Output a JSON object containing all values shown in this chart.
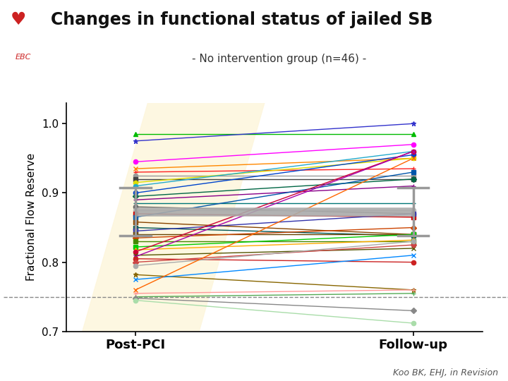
{
  "title": "Changes in functional status of jailed SB",
  "subtitle": "- No intervention group (n=46) -",
  "ylabel": "Fractional Flow Reserve",
  "xlabel_left": "Post-PCI",
  "xlabel_right": "Follow-up",
  "citation": "Koo BK, EHJ, in Revision",
  "ylim": [
    0.7,
    1.03
  ],
  "yticks": [
    0.7,
    0.8,
    0.9,
    1.0
  ],
  "dashed_line_y": 0.75,
  "mean_postpci": 0.873,
  "mean_followup": 0.873,
  "mean_err_low": 0.035,
  "mean_err_high": 0.035,
  "lines": [
    {
      "post": 0.985,
      "fu": 0.985,
      "color": "#00bb00",
      "marker": "^"
    },
    {
      "post": 0.975,
      "fu": 1.0,
      "color": "#3333cc",
      "marker": "*"
    },
    {
      "post": 0.945,
      "fu": 0.97,
      "color": "#ff00ff",
      "marker": "o"
    },
    {
      "post": 0.935,
      "fu": 0.95,
      "color": "#ff8800",
      "marker": "x"
    },
    {
      "post": 0.93,
      "fu": 0.935,
      "color": "#ff2222",
      "marker": "+"
    },
    {
      "post": 0.925,
      "fu": 0.925,
      "color": "#999999",
      "marker": "o"
    },
    {
      "post": 0.92,
      "fu": 0.92,
      "color": "#444444",
      "marker": "s"
    },
    {
      "post": 0.915,
      "fu": 0.95,
      "color": "#dddd00",
      "marker": "o"
    },
    {
      "post": 0.91,
      "fu": 0.96,
      "color": "#22aacc",
      "marker": "o"
    },
    {
      "post": 0.9,
      "fu": 0.955,
      "color": "#0044cc",
      "marker": "o"
    },
    {
      "post": 0.895,
      "fu": 0.92,
      "color": "#006644",
      "marker": "D"
    },
    {
      "post": 0.89,
      "fu": 0.91,
      "color": "#880088",
      "marker": "+"
    },
    {
      "post": 0.885,
      "fu": 0.885,
      "color": "#007777",
      "marker": "+"
    },
    {
      "post": 0.88,
      "fu": 0.87,
      "color": "#666666",
      "marker": "o"
    },
    {
      "post": 0.875,
      "fu": 0.875,
      "color": "#bbbbbb",
      "marker": "o"
    },
    {
      "post": 0.87,
      "fu": 0.865,
      "color": "#cc0000",
      "marker": "s"
    },
    {
      "post": 0.865,
      "fu": 0.93,
      "color": "#0055aa",
      "marker": "s"
    },
    {
      "post": 0.858,
      "fu": 0.84,
      "color": "#884400",
      "marker": "s"
    },
    {
      "post": 0.85,
      "fu": 0.838,
      "color": "#005555",
      "marker": "s"
    },
    {
      "post": 0.845,
      "fu": 0.87,
      "color": "#3333aa",
      "marker": "s"
    },
    {
      "post": 0.84,
      "fu": 0.84,
      "color": "#664400",
      "marker": "s"
    },
    {
      "post": 0.835,
      "fu": 0.85,
      "color": "#cc4400",
      "marker": "D"
    },
    {
      "post": 0.83,
      "fu": 0.83,
      "color": "#448800",
      "marker": "s"
    },
    {
      "post": 0.822,
      "fu": 0.84,
      "color": "#00cc00",
      "marker": "s"
    },
    {
      "post": 0.818,
      "fu": 0.832,
      "color": "#ffaa00",
      "marker": "^"
    },
    {
      "post": 0.815,
      "fu": 0.96,
      "color": "#cc0033",
      "marker": "o"
    },
    {
      "post": 0.81,
      "fu": 0.82,
      "color": "#555500",
      "marker": "x"
    },
    {
      "post": 0.808,
      "fu": 0.96,
      "color": "#aa00aa",
      "marker": "x"
    },
    {
      "post": 0.805,
      "fu": 0.8,
      "color": "#cc2222",
      "marker": "o"
    },
    {
      "post": 0.8,
      "fu": 0.825,
      "color": "#cc4444",
      "marker": "D"
    },
    {
      "post": 0.795,
      "fu": 0.83,
      "color": "#aaaaaa",
      "marker": "o"
    },
    {
      "post": 0.782,
      "fu": 0.76,
      "color": "#886600",
      "marker": "*"
    },
    {
      "post": 0.775,
      "fu": 0.81,
      "color": "#0088ff",
      "marker": "x"
    },
    {
      "post": 0.76,
      "fu": 0.95,
      "color": "#ff6600",
      "marker": "x"
    },
    {
      "post": 0.755,
      "fu": 0.76,
      "color": "#ff9999",
      "marker": "+"
    },
    {
      "post": 0.75,
      "fu": 0.755,
      "color": "#55aa55",
      "marker": "+"
    },
    {
      "post": 0.748,
      "fu": 0.73,
      "color": "#888888",
      "marker": "D"
    },
    {
      "post": 0.745,
      "fu": 0.712,
      "color": "#aaddaa",
      "marker": "o"
    }
  ]
}
